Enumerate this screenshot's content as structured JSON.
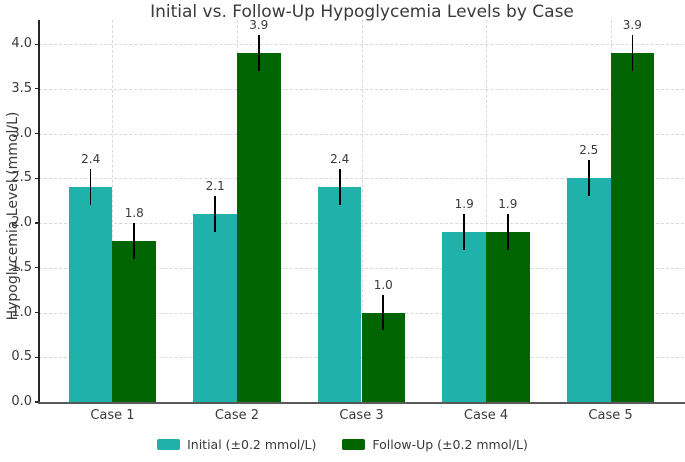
{
  "chart_data": {
    "type": "bar",
    "title": "Initial vs. Follow-Up Hypoglycemia Levels by Case",
    "xlabel": "",
    "ylabel": "Hypoglycemia Level (mmol/L)",
    "categories": [
      "Case 1",
      "Case 2",
      "Case 3",
      "Case 4",
      "Case 5"
    ],
    "series": [
      {
        "name": "Initial (±0.2 mmol/L)",
        "color": "#20B2AA",
        "values": [
          2.4,
          2.1,
          2.4,
          1.9,
          2.5
        ]
      },
      {
        "name": "Follow-Up (±0.2 mmol/L)",
        "color": "#006400",
        "values": [
          1.8,
          3.9,
          1.0,
          1.9,
          3.9
        ]
      }
    ],
    "error_bar": 0.2,
    "error_bar_color": "#000000",
    "value_labels": {
      "initial": [
        "2.4",
        "2.1",
        "2.4",
        "1.9",
        "2.5"
      ],
      "followup": [
        "1.8",
        "3.9",
        "1.0",
        "1.9",
        "3.9"
      ]
    },
    "ylim": [
      0,
      4.27
    ],
    "yticks": [
      0.0,
      0.5,
      1.0,
      1.5,
      2.0,
      2.5,
      3.0,
      3.5,
      4.0
    ],
    "grid": true,
    "grid_style": "dashed",
    "grid_color": "#d9d9d9",
    "legend_position": "bottom-center",
    "text_color": "#3a3a3a",
    "axis_color": "#262626",
    "bottom_spine_color": "#595959",
    "background_color": "#ffffff"
  }
}
